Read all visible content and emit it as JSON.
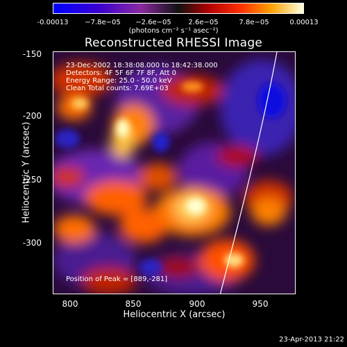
{
  "colorbar": {
    "ticks": [
      "-0.00013",
      "−7.8e−05",
      "−2.6e−05",
      "2.6e−05",
      "7.8e−05",
      "0.00013"
    ],
    "units": "(photons cm⁻² s⁻¹ asec⁻²)"
  },
  "title": "Reconstructed RHESSI Image",
  "info": {
    "line1": "23-Dec-2002 18:38:08.000 to 18:42:38.000",
    "line2": "Detectors: 4F 5F 6F 7F 8F, Att 0",
    "line3": "Energy Range: 25.0 - 50.0 keV",
    "line4": "Clean     Total counts: 7.69E+03"
  },
  "peak": "Position of Peak = [889,-281]",
  "axes": {
    "xlabel": "Heliocentric X (arcsec)",
    "ylabel": "Heliocentric Y (arcsec)",
    "xticks": [
      "800",
      "850",
      "900",
      "950"
    ],
    "yticks": [
      "-150",
      "-200",
      "-250",
      "-300"
    ]
  },
  "timestamp": "23-Apr-2013 21:22",
  "colors": {
    "background": "#000000",
    "limb": "#ffffff"
  }
}
